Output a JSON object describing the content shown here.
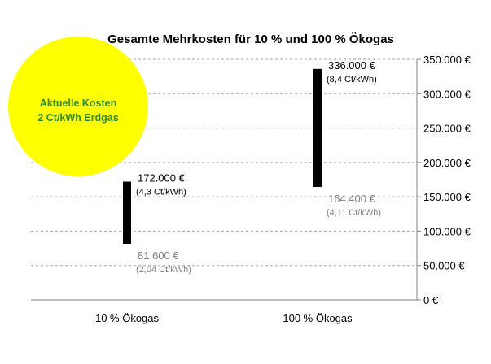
{
  "chart_data": {
    "type": "floating-bar",
    "title": "Gesamte Mehrkosten für 10 % und 100 % Ökogas",
    "categories": [
      "10 % Ökogas",
      "100 % Ökogas"
    ],
    "y_tick_values": [
      0,
      50000,
      100000,
      150000,
      200000,
      250000,
      300000,
      350000
    ],
    "y_tick_labels": [
      "0 €",
      "50.000 €",
      "100.000 €",
      "150.000 €",
      "200.000 €",
      "250.000 €",
      "300.000 €",
      "350.000 €"
    ],
    "ylim": [
      0,
      350000
    ],
    "grid": true,
    "ranges": [
      {
        "low": 81600,
        "high": 172000,
        "low_label": "81.600 €",
        "low_sub": "(2,04 Ct/kWh)",
        "high_label": "172.000 €",
        "high_sub": "(4,3 Ct/kWh)"
      },
      {
        "low": 164400,
        "high": 336000,
        "low_label": "164.400 €",
        "low_sub": "(4,11 Ct/kWh)",
        "high_label": "336.000 €",
        "high_sub": "(8,4 Ct/kWh)"
      }
    ],
    "annotation": {
      "lines": [
        "Aktuelle Kosten",
        "2 Ct/kWh Erdgas"
      ],
      "fill": "#ffff00",
      "text_color": "#2e8b2e"
    },
    "colors": {
      "bar": "#000000",
      "low_label": "#808080",
      "grid": "#a6a6a6"
    }
  }
}
